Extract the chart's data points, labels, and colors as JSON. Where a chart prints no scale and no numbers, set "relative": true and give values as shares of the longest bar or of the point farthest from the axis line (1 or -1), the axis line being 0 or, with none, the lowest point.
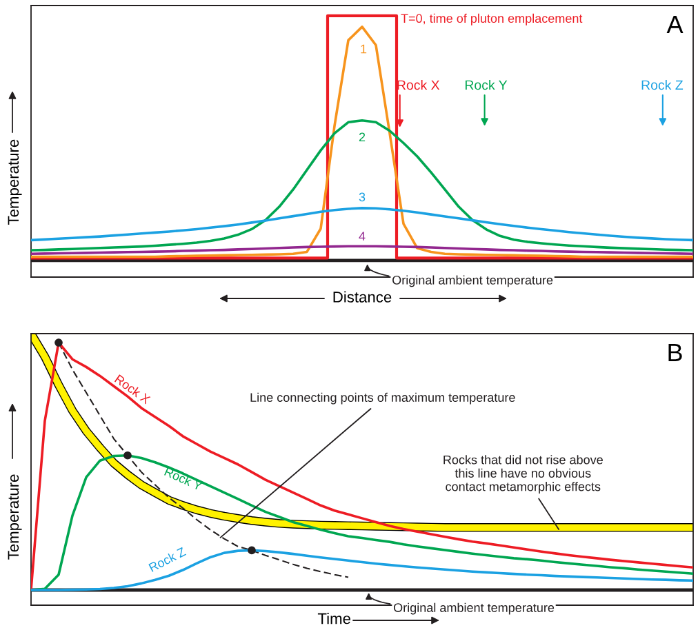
{
  "chart_data": [
    {
      "type": "line",
      "title": "A",
      "xlabel": "Distance",
      "ylabel": "Temperature",
      "relative": true,
      "tick_labels": false,
      "categories": [
        null,
        null,
        null,
        null,
        null,
        null,
        null,
        null,
        null,
        null,
        null,
        null,
        null,
        null,
        null,
        null,
        null,
        null,
        null,
        null,
        null,
        null,
        null,
        null,
        null,
        null,
        null,
        null,
        null,
        null,
        null,
        null,
        null,
        null,
        null,
        null,
        null,
        null,
        null,
        null,
        null,
        null,
        null,
        null,
        null,
        null,
        null,
        null,
        null
      ],
      "annotations": [
        "Rock X",
        "Rock Y",
        "Rock Z",
        "Original ambient temperature"
      ],
      "series": [
        {
          "name": "T=0, time of pluton emplacement",
          "type": "step",
          "color": "#ed1c24",
          "values": [
            0.01,
            0.01,
            0.01,
            0.01,
            0.01,
            0.01,
            0.01,
            0.01,
            0.01,
            0.01,
            0.01,
            0.01,
            0.01,
            0.01,
            0.01,
            0.01,
            0.01,
            0.01,
            0.01,
            0.01,
            0.01,
            0.01,
            1,
            1,
            1,
            1,
            1,
            0.01,
            0.01,
            0.01,
            0.01,
            0.01,
            0.01,
            0.01,
            0.01,
            0.01,
            0.01,
            0.01,
            0.01,
            0.01,
            0.01,
            0.01,
            0.01,
            0.01,
            0.01,
            0.01,
            0.01,
            0.01,
            0.01
          ]
        },
        {
          "name": "1",
          "color": "#f7941d",
          "values": [
            0.015,
            0.015,
            0.015,
            0.015,
            0.015,
            0.015,
            0.015,
            0.015,
            0.015,
            0.015,
            0.017,
            0.018,
            0.019,
            0.02,
            0.021,
            0.022,
            0.023,
            0.024,
            0.025,
            0.027,
            0.035,
            0.13,
            0.55,
            0.9,
            0.955,
            0.88,
            0.52,
            0.15,
            0.05,
            0.035,
            0.027,
            0.025,
            0.024,
            0.023,
            0.022,
            0.021,
            0.02,
            0.019,
            0.018,
            0.017,
            0.015,
            0.015,
            0.015,
            0.015,
            0.015,
            0.015,
            0.015,
            0.015,
            0.015
          ]
        },
        {
          "name": "2",
          "color": "#00a651",
          "values": [
            0.042,
            0.043,
            0.045,
            0.047,
            0.049,
            0.051,
            0.053,
            0.055,
            0.057,
            0.06,
            0.064,
            0.068,
            0.073,
            0.08,
            0.09,
            0.105,
            0.128,
            0.165,
            0.22,
            0.29,
            0.37,
            0.45,
            0.52,
            0.565,
            0.572,
            0.565,
            0.53,
            0.48,
            0.425,
            0.36,
            0.29,
            0.22,
            0.165,
            0.127,
            0.1,
            0.085,
            0.076,
            0.07,
            0.065,
            0.061,
            0.058,
            0.055,
            0.052,
            0.05,
            0.048,
            0.046,
            0.044,
            0.043,
            0.042
          ]
        },
        {
          "name": "3",
          "color": "#1ba1e2",
          "values": [
            0.083,
            0.086,
            0.089,
            0.092,
            0.095,
            0.098,
            0.102,
            0.106,
            0.11,
            0.114,
            0.118,
            0.123,
            0.128,
            0.134,
            0.14,
            0.147,
            0.155,
            0.163,
            0.172,
            0.181,
            0.19,
            0.199,
            0.206,
            0.211,
            0.214,
            0.213,
            0.209,
            0.203,
            0.196,
            0.188,
            0.18,
            0.172,
            0.164,
            0.156,
            0.148,
            0.141,
            0.134,
            0.128,
            0.122,
            0.116,
            0.111,
            0.106,
            0.101,
            0.097,
            0.093,
            0.09,
            0.087,
            0.085,
            0.083
          ]
        },
        {
          "name": "4",
          "color": "#92278f",
          "values": [
            0.027,
            0.028,
            0.029,
            0.03,
            0.031,
            0.032,
            0.033,
            0.034,
            0.035,
            0.036,
            0.037,
            0.039,
            0.04,
            0.042,
            0.043,
            0.045,
            0.047,
            0.049,
            0.051,
            0.053,
            0.055,
            0.056,
            0.057,
            0.058,
            0.058,
            0.058,
            0.057,
            0.056,
            0.055,
            0.053,
            0.051,
            0.049,
            0.047,
            0.045,
            0.043,
            0.042,
            0.04,
            0.039,
            0.037,
            0.036,
            0.035,
            0.034,
            0.033,
            0.032,
            0.031,
            0.03,
            0.029,
            0.028,
            0.027
          ]
        }
      ]
    },
    {
      "type": "line",
      "title": "B",
      "xlabel": "Time",
      "ylabel": "Temperature",
      "relative": true,
      "tick_labels": false,
      "categories": [
        null,
        null,
        null,
        null,
        null,
        null,
        null,
        null,
        null,
        null,
        null,
        null,
        null,
        null,
        null,
        null,
        null,
        null,
        null,
        null,
        null,
        null,
        null,
        null,
        null,
        null,
        null,
        null,
        null,
        null,
        null,
        null,
        null,
        null,
        null,
        null,
        null,
        null,
        null,
        null,
        null,
        null,
        null,
        null,
        null,
        null,
        null,
        null,
        null
      ],
      "annotations": [
        "Line connecting points of maximum temperature",
        "Rocks that did not rise above\nthis line have no obvious\ncontact metamorphic effects",
        "Original ambient temperature"
      ],
      "series": [
        {
          "color": "#fff200",
          "values": [
            1.0,
            0.91,
            0.8,
            0.7,
            0.62,
            0.555,
            0.495,
            0.45,
            0.41,
            0.38,
            0.35,
            0.33,
            0.313,
            0.299,
            0.288,
            0.279,
            0.271,
            0.265,
            0.26,
            0.257,
            0.255,
            0.253,
            0.252,
            0.251,
            0.25,
            0.249,
            0.248,
            0.247,
            0.246,
            0.245,
            0.244,
            0.244,
            0.244,
            0.244,
            0.244,
            0.244,
            0.244,
            0.244,
            0.244,
            0.244,
            0.244,
            0.244,
            0.244,
            0.244,
            0.244,
            0.244,
            0.244,
            0.244,
            0.244
          ]
        },
        {
          "color": "#231f20",
          "line_style": "dashed",
          "values": [
            null,
            null,
            0.965,
            0.86,
            0.77,
            0.68,
            0.59,
            0.525,
            0.46,
            0.41,
            0.36,
            0.32,
            0.275,
            0.235,
            0.2,
            0.17,
            0.155,
            0.135,
            0.118,
            0.1,
            0.085,
            0.072,
            0.06,
            0.05,
            null,
            null,
            null,
            null,
            null,
            null,
            null,
            null,
            null,
            null,
            null,
            null,
            null,
            null,
            null,
            null,
            null,
            null,
            null,
            null,
            null,
            null,
            null,
            null,
            null
          ]
        },
        {
          "name": "Rock X",
          "color": "#ed1c24",
          "values": [
            0,
            0.66,
            0.965,
            0.9,
            0.87,
            0.835,
            0.795,
            0.755,
            0.71,
            0.675,
            0.64,
            0.6,
            0.57,
            0.54,
            0.515,
            0.49,
            0.46,
            0.43,
            0.405,
            0.38,
            0.355,
            0.33,
            0.31,
            0.295,
            0.28,
            0.265,
            0.25,
            0.238,
            0.228,
            0.218,
            0.208,
            0.198,
            0.189,
            0.182,
            0.174,
            0.166,
            0.158,
            0.15,
            0.143,
            0.136,
            0.13,
            0.124,
            0.118,
            0.113,
            0.108,
            0.103,
            0.098,
            0.093,
            0.088
          ]
        },
        {
          "name": "Rock Y",
          "color": "#00a651",
          "values": [
            0,
            0.005,
            0.06,
            0.29,
            0.44,
            0.505,
            0.523,
            0.525,
            0.515,
            0.498,
            0.478,
            0.455,
            0.43,
            0.405,
            0.38,
            0.355,
            0.33,
            0.305,
            0.285,
            0.265,
            0.25,
            0.235,
            0.222,
            0.21,
            0.203,
            0.195,
            0.188,
            0.178,
            0.17,
            0.163,
            0.156,
            0.149,
            0.142,
            0.136,
            0.13,
            0.124,
            0.12,
            0.115,
            0.109,
            0.104,
            0.099,
            0.094,
            0.089,
            0.085,
            0.08,
            0.076,
            0.072,
            0.068,
            0.064
          ]
        },
        {
          "name": "Rock Z",
          "color": "#1ba1e2",
          "values": [
            0,
            0,
            0,
            0.001,
            0.002,
            0.004,
            0.008,
            0.015,
            0.026,
            0.04,
            0.056,
            0.078,
            0.104,
            0.128,
            0.145,
            0.153,
            0.155,
            0.152,
            0.147,
            0.141,
            0.134,
            0.127,
            0.121,
            0.115,
            0.109,
            0.103,
            0.098,
            0.093,
            0.088,
            0.084,
            0.08,
            0.076,
            0.072,
            0.069,
            0.066,
            0.063,
            0.06,
            0.058,
            0.055,
            0.053,
            0.051,
            0.049,
            0.047,
            0.045,
            0.043,
            0.041,
            0.04,
            0.038,
            0.037
          ]
        },
        {
          "type": "scatter",
          "marker": "circle",
          "color": "#231f20",
          "values": [
            null,
            null,
            0.965,
            null,
            null,
            null,
            null,
            0.525,
            null,
            null,
            null,
            null,
            null,
            null,
            null,
            null,
            0.155,
            null,
            null,
            null,
            null,
            null,
            null,
            null,
            null,
            null,
            null,
            null,
            null,
            null,
            null,
            null,
            null,
            null,
            null,
            null,
            null,
            null,
            null,
            null,
            null,
            null,
            null,
            null,
            null,
            null,
            null,
            null,
            null
          ]
        }
      ]
    }
  ]
}
